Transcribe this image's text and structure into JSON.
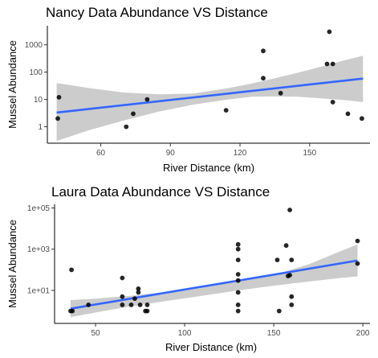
{
  "chart_data": [
    {
      "type": "scatter",
      "title": "Nancy Data Abundance VS Distance",
      "xlabel": "River Distance (km)",
      "ylabel": "Mussel Abundance",
      "xlim": [
        37,
        176
      ],
      "ylim": [
        0.25,
        5000
      ],
      "y_scale": "log10",
      "x_ticks": [
        60,
        90,
        120,
        150
      ],
      "y_ticks": [
        1,
        10,
        100,
        1000
      ],
      "y_tick_labels": [
        "1",
        "10",
        "100",
        "1000"
      ],
      "grid": false,
      "legend": "none",
      "point_color": "#000000",
      "fit_color": "#3366ff",
      "band_color": "#cccccc",
      "points": [
        {
          "x": 41.5,
          "y": 2
        },
        {
          "x": 42,
          "y": 12
        },
        {
          "x": 71,
          "y": 1
        },
        {
          "x": 74,
          "y": 3
        },
        {
          "x": 80,
          "y": 10
        },
        {
          "x": 114,
          "y": 4
        },
        {
          "x": 130,
          "y": 600
        },
        {
          "x": 130,
          "y": 60
        },
        {
          "x": 137.5,
          "y": 17
        },
        {
          "x": 157.5,
          "y": 200
        },
        {
          "x": 158.5,
          "y": 3000
        },
        {
          "x": 160,
          "y": 200
        },
        {
          "x": 160,
          "y": 8
        },
        {
          "x": 166.5,
          "y": 3
        },
        {
          "x": 172.5,
          "y": 2
        }
      ],
      "fit": {
        "x": [
          41,
          173
        ],
        "y": [
          3.3,
          58
        ]
      },
      "band": {
        "x": [
          41,
          55,
          70,
          85,
          100,
          115,
          125,
          135,
          145,
          155,
          165,
          173
        ],
        "lower": [
          0.3,
          0.75,
          1.7,
          3.6,
          6.5,
          10,
          12.5,
          13,
          12.5,
          11,
          9.5,
          8
        ],
        "upper": [
          40,
          26,
          18,
          15.5,
          16.5,
          26,
          38,
          60,
          95,
          160,
          270,
          400
        ]
      }
    },
    {
      "type": "scatter",
      "title": "Laura Data Abundance VS Distance",
      "xlabel": "River Distance (km)",
      "ylabel": "Mussel Abundance",
      "xlim": [
        27,
        204
      ],
      "ylim": [
        0.25,
        150000
      ],
      "y_scale": "log10",
      "x_ticks": [
        50,
        100,
        150,
        200
      ],
      "y_ticks": [
        10,
        1000,
        100000
      ],
      "y_tick_labels": [
        "1e+01",
        "1e+03",
        "1e+05"
      ],
      "grid": false,
      "legend": "none",
      "point_color": "#000000",
      "fit_color": "#3366ff",
      "band_color": "#cccccc",
      "points": [
        {
          "x": 36,
          "y": 1
        },
        {
          "x": 36.5,
          "y": 100
        },
        {
          "x": 37,
          "y": 1
        },
        {
          "x": 46,
          "y": 2
        },
        {
          "x": 65,
          "y": 40
        },
        {
          "x": 65,
          "y": 5
        },
        {
          "x": 65,
          "y": 2
        },
        {
          "x": 70,
          "y": 2
        },
        {
          "x": 72,
          "y": 4
        },
        {
          "x": 74,
          "y": 12
        },
        {
          "x": 74,
          "y": 8
        },
        {
          "x": 75,
          "y": 2
        },
        {
          "x": 79,
          "y": 2
        },
        {
          "x": 78,
          "y": 1
        },
        {
          "x": 79,
          "y": 1
        },
        {
          "x": 130,
          "y": 1700
        },
        {
          "x": 130,
          "y": 1000
        },
        {
          "x": 130,
          "y": 300
        },
        {
          "x": 130,
          "y": 60
        },
        {
          "x": 130,
          "y": 30
        },
        {
          "x": 130,
          "y": 8
        },
        {
          "x": 130,
          "y": 2
        },
        {
          "x": 130,
          "y": 1
        },
        {
          "x": 152,
          "y": 300
        },
        {
          "x": 153,
          "y": 1
        },
        {
          "x": 157,
          "y": 1500
        },
        {
          "x": 158,
          "y": 50
        },
        {
          "x": 159,
          "y": 55
        },
        {
          "x": 159,
          "y": 80000
        },
        {
          "x": 160,
          "y": 300
        },
        {
          "x": 160,
          "y": 5
        },
        {
          "x": 160,
          "y": 2
        },
        {
          "x": 197,
          "y": 2500
        },
        {
          "x": 197,
          "y": 200
        }
      ],
      "fit": {
        "x": [
          36,
          197
        ],
        "y": [
          1.3,
          280
        ]
      },
      "band": {
        "x": [
          36,
          50,
          70,
          90,
          110,
          130,
          150,
          170,
          185,
          197
        ],
        "lower": [
          0.5,
          0.85,
          1.7,
          3.1,
          5.5,
          10,
          17,
          27,
          38,
          48
        ],
        "upper": [
          3.4,
          4,
          5.5,
          8.5,
          14,
          27,
          55,
          190,
          650,
          1700
        ]
      }
    }
  ]
}
